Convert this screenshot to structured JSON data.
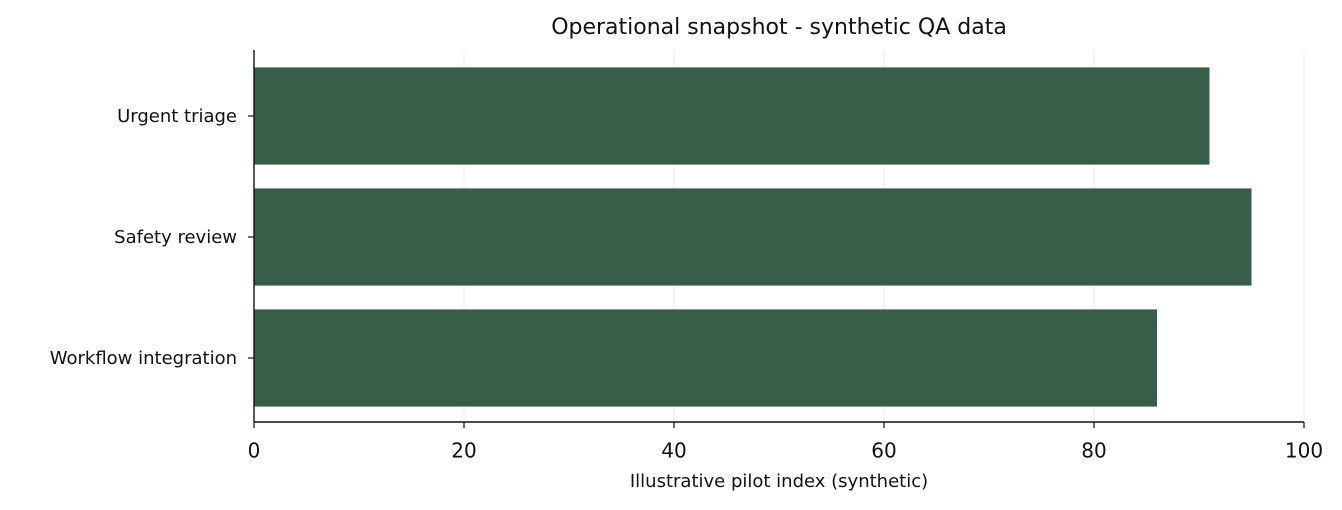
{
  "chart_data": {
    "type": "barh",
    "title": "Operational snapshot - synthetic QA data",
    "xlabel": "Illustrative pilot index (synthetic)",
    "categories": [
      "Urgent triage",
      "Safety review",
      "Workflow integration"
    ],
    "values": [
      91,
      95,
      86
    ],
    "color": "#365e48",
    "xlim": [
      0,
      100
    ],
    "xticks": [
      0,
      20,
      40,
      60,
      80,
      100
    ],
    "grid": true
  }
}
